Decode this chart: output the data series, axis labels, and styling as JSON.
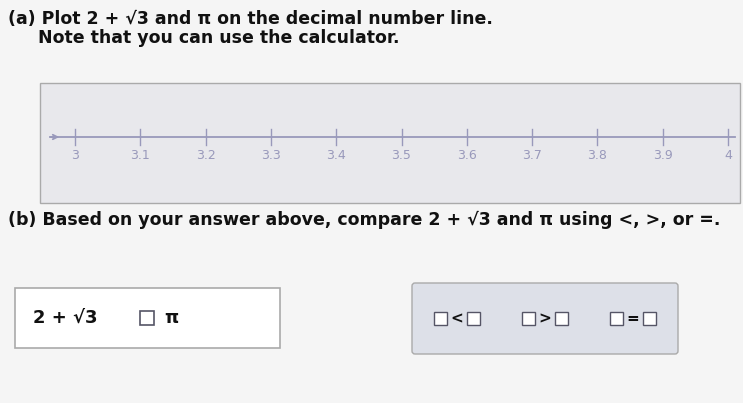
{
  "title_a_part1": "(a) Plot 2 + ",
  "title_a_sqrt": "√3",
  "title_a_part2": " and π on the decimal number line.",
  "subtitle_a": "     Note that you can use the calculator.",
  "title_b": "(b) Based on your answer above, compare 2 + √3 and π using <, >, or =.",
  "tick_positions": [
    3.0,
    3.1,
    3.2,
    3.3,
    3.4,
    3.5,
    3.6,
    3.7,
    3.8,
    3.9,
    4.0
  ],
  "tick_labels": [
    "3",
    "3.1",
    "3.2",
    "3.3",
    "3.4",
    "3.5",
    "3.6",
    "3.7",
    "3.8",
    "3.9",
    "4"
  ],
  "page_bg": "#f5f5f5",
  "nl_box_bg": "#e8e8ec",
  "nl_line_color": "#9999bb",
  "nl_tick_color": "#9999bb",
  "nl_label_color": "#9999bb",
  "text_color": "#111111",
  "box_border": "#aaaaaa",
  "white": "#ffffff",
  "choice_box_bg": "#dde0e8",
  "choice_box_border": "#aaaaaa"
}
